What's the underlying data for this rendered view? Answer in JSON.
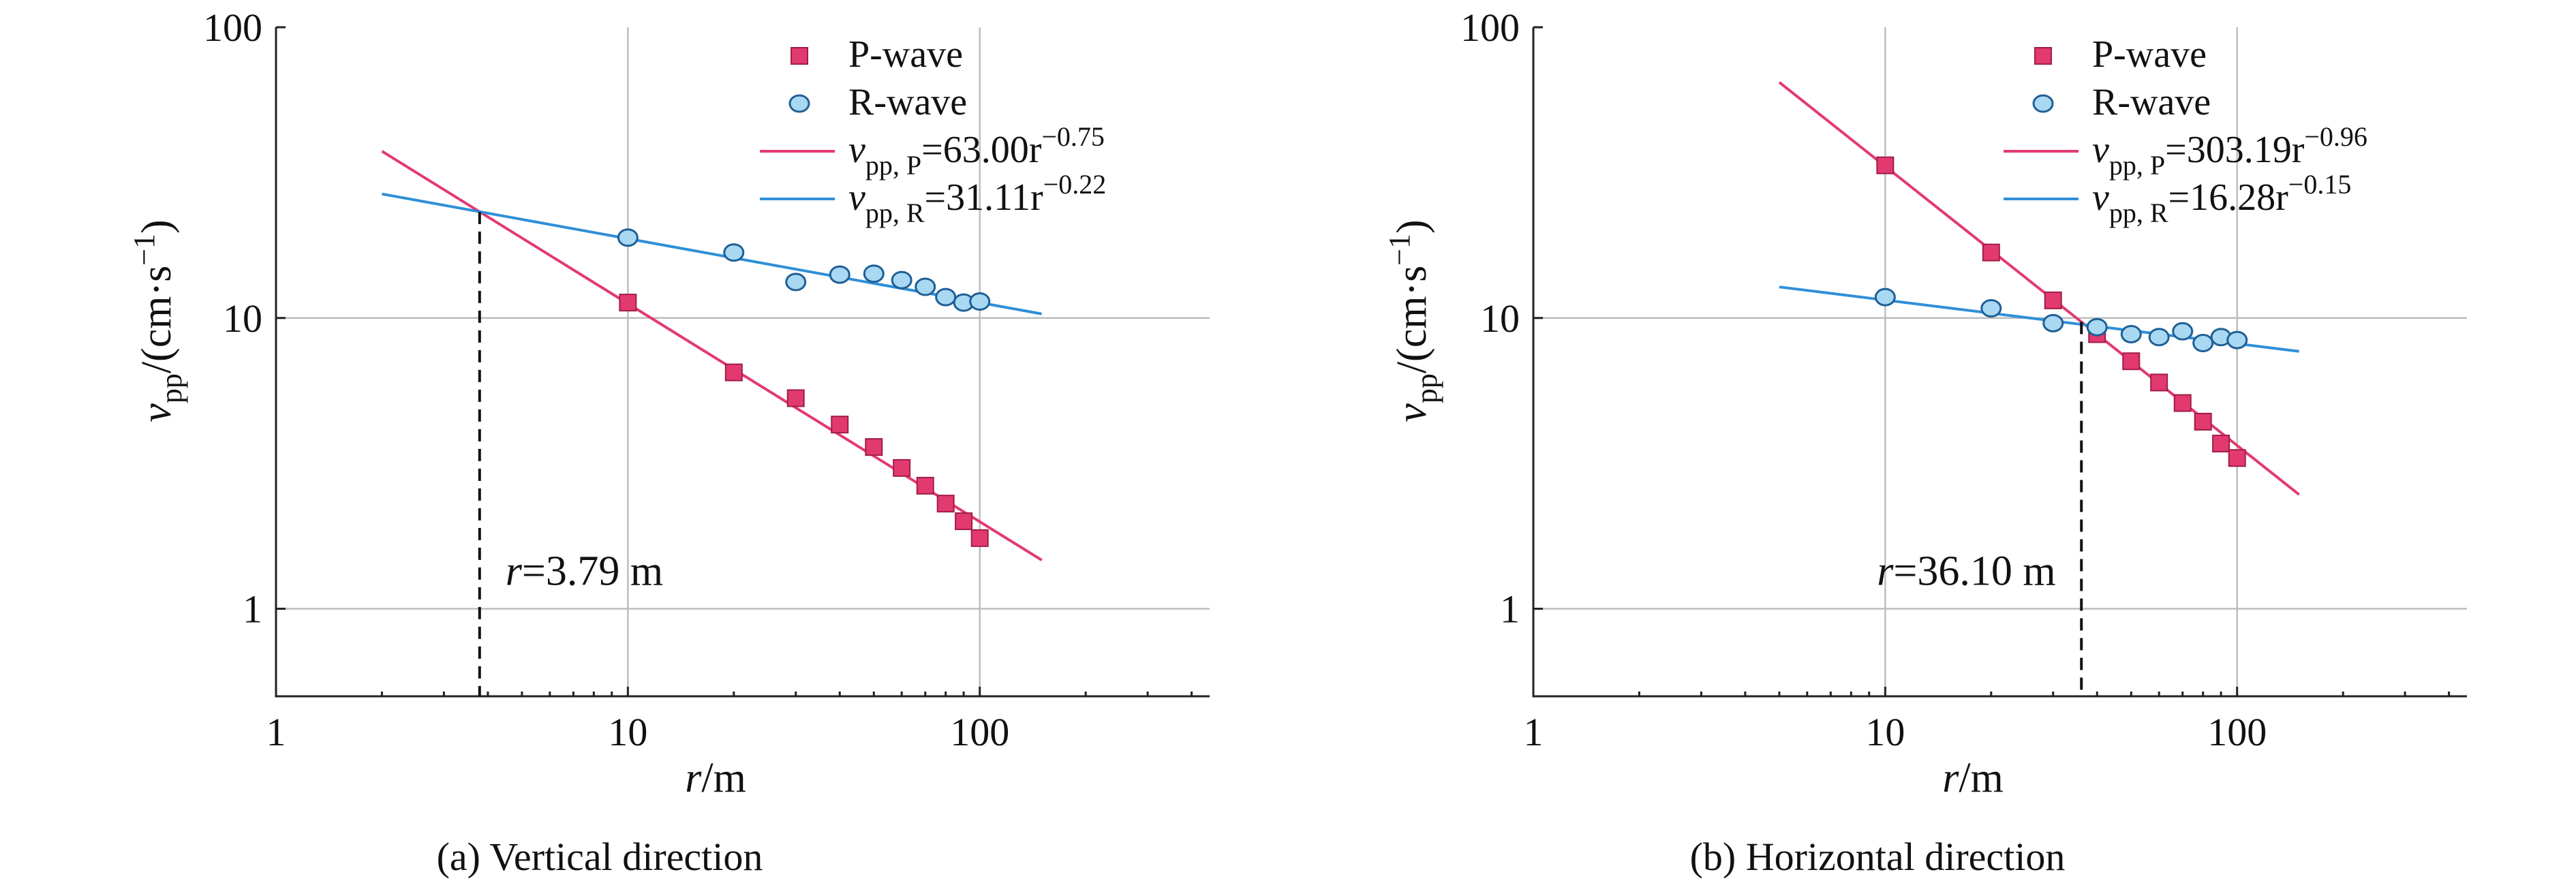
{
  "chart_data": [
    {
      "id": "a",
      "type": "scatter",
      "caption": "(a) Vertical direction",
      "xscale": "log",
      "yscale": "log",
      "xlim": [
        1,
        450
      ],
      "ylim": [
        0.5,
        100
      ],
      "xticks": [
        1,
        10,
        100
      ],
      "yticks": [
        1,
        10,
        100
      ],
      "grid": true,
      "legend_position": "top-right",
      "series": [
        {
          "name": "P-wave",
          "marker": "square",
          "color": "#e23a6f",
          "x": [
            10,
            20,
            30,
            40,
            50,
            60,
            70,
            80,
            90,
            100
          ],
          "y": [
            11.3,
            6.5,
            5.3,
            4.3,
            3.6,
            3.05,
            2.65,
            2.3,
            2.0,
            1.75
          ]
        },
        {
          "name": "R-wave",
          "marker": "circle",
          "color": "#2f8fd8",
          "x": [
            10,
            20,
            30,
            40,
            50,
            60,
            70,
            80,
            90,
            100
          ],
          "y": [
            18.9,
            16.8,
            13.3,
            14.1,
            14.2,
            13.5,
            12.8,
            11.8,
            11.3,
            11.4
          ]
        }
      ],
      "fits": [
        {
          "series": "P-wave",
          "var": "v",
          "sub": "pp, P",
          "coef_text": "=63.00r",
          "exp_text": "−0.75",
          "a": 63.0,
          "b": -0.75,
          "x_range": [
            2,
            150
          ],
          "color": "#e23a6f"
        },
        {
          "series": "R-wave",
          "var": "v",
          "sub": "pp, R",
          "coef_text": "=31.11r",
          "exp_text": "−0.22",
          "a": 31.11,
          "b": -0.22,
          "x_range": [
            2,
            150
          ],
          "color": "#2f8fd8"
        }
      ],
      "intersection": {
        "x": 3.79,
        "label_var": "r",
        "label_rest": "=3.79 m"
      }
    },
    {
      "id": "b",
      "type": "scatter",
      "caption": "(b) Horizontal direction",
      "xscale": "log",
      "yscale": "log",
      "xlim": [
        1,
        450
      ],
      "ylim": [
        0.5,
        100
      ],
      "xticks": [
        1,
        10,
        100
      ],
      "yticks": [
        1,
        10,
        100
      ],
      "grid": true,
      "legend_position": "top-right",
      "series": [
        {
          "name": "P-wave",
          "marker": "square",
          "color": "#e23a6f",
          "x": [
            10,
            20,
            30,
            40,
            50,
            60,
            70,
            80,
            90,
            100
          ],
          "y": [
            33.5,
            16.8,
            11.5,
            8.8,
            7.1,
            6.0,
            5.1,
            4.4,
            3.7,
            3.3
          ]
        },
        {
          "name": "R-wave",
          "marker": "circle",
          "color": "#2f8fd8",
          "x": [
            10,
            20,
            30,
            40,
            50,
            60,
            70,
            80,
            90,
            100
          ],
          "y": [
            11.8,
            10.8,
            9.6,
            9.3,
            8.8,
            8.6,
            9.0,
            8.2,
            8.6,
            8.4
          ]
        }
      ],
      "fits": [
        {
          "series": "P-wave",
          "var": "v",
          "sub": "pp, P",
          "coef_text": "=303.19r",
          "exp_text": "−0.96",
          "a": 303.19,
          "b": -0.96,
          "x_range": [
            5,
            150
          ],
          "color": "#e23a6f"
        },
        {
          "series": "R-wave",
          "var": "v",
          "sub": "pp, R",
          "coef_text": "=16.28r",
          "exp_text": "−0.15",
          "a": 16.28,
          "b": -0.15,
          "x_range": [
            5,
            150
          ],
          "color": "#2f8fd8"
        }
      ],
      "intersection": {
        "x": 36.1,
        "label_var": "r",
        "label_rest": "=36.10 m"
      }
    }
  ],
  "axes": {
    "xlabel_var": "r",
    "xlabel_unit": "/m",
    "ylabel_var": "v",
    "ylabel_sub": "pp",
    "ylabel_unit": "/(cm·s",
    "ylabel_unit_exp": "−1",
    "ylabel_close": ")"
  }
}
